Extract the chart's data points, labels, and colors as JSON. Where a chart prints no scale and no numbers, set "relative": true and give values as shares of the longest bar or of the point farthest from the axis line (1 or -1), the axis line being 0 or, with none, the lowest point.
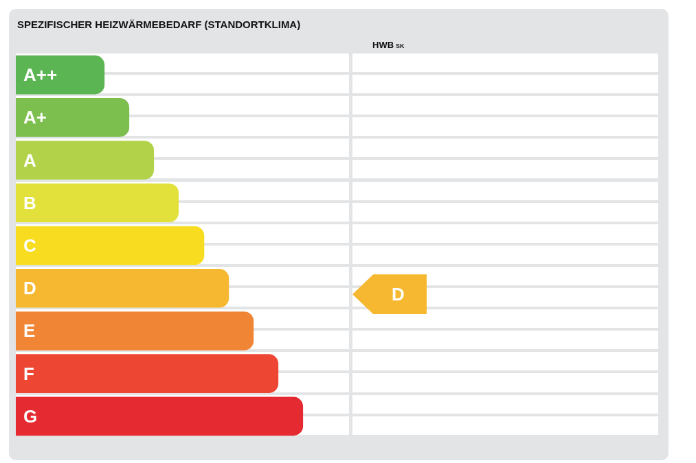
{
  "chart_data": {
    "type": "bar",
    "orientation": "horizontal",
    "relative": true,
    "title": "SPEZIFISCHER HEIZWÄRMEBEDARF (STANDORTKLIMA)",
    "categories": [
      "A++",
      "A+",
      "A",
      "B",
      "C",
      "D",
      "E",
      "F",
      "G"
    ],
    "values": [
      0.309,
      0.395,
      0.481,
      0.567,
      0.656,
      0.742,
      0.828,
      0.914,
      1
    ],
    "colors": [
      "#5ab552",
      "#7dbf4f",
      "#b2d24a",
      "#e2e03a",
      "#f7dc1f",
      "#f6b830",
      "#f08535",
      "#ed4633",
      "#e52a31"
    ],
    "annotations": [
      "HWB$_{SK}$",
      "D"
    ]
  }
}
